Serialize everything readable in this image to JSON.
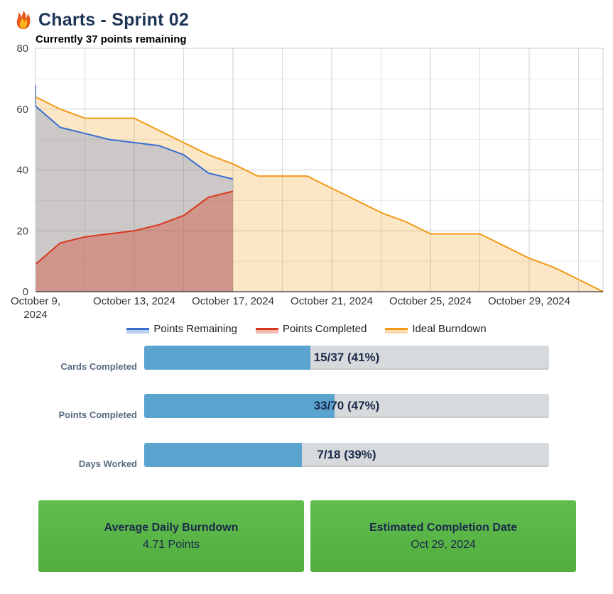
{
  "header": {
    "title": "Charts - Sprint 02",
    "subtitle": "Currently 37 points remaining",
    "logo_icon": "flame-icon"
  },
  "chart_data": {
    "type": "area",
    "x_start": "2024-10-09",
    "y_ticks": [
      "0",
      "20",
      "40",
      "60",
      "80"
    ],
    "ylim": [
      0,
      80
    ],
    "x_tick_labels": [
      [
        "October 9,",
        "2024"
      ],
      [
        "October 13, 2024"
      ],
      [
        "October 17, 2024"
      ],
      [
        "October 21, 2024"
      ],
      [
        "October 25, 2024"
      ],
      [
        "October 29, 2024"
      ]
    ],
    "series": [
      {
        "name": "Points Remaining",
        "color": "#3a6fd1",
        "points": [
          [
            "2024-10-09",
            68
          ],
          [
            "2024-10-09",
            61
          ],
          [
            "2024-10-10",
            54
          ],
          [
            "2024-10-11",
            52
          ],
          [
            "2024-10-12",
            50
          ],
          [
            "2024-10-13",
            49
          ],
          [
            "2024-10-14",
            48
          ],
          [
            "2024-10-15",
            45
          ],
          [
            "2024-10-16",
            39
          ],
          [
            "2024-10-17",
            37
          ]
        ]
      },
      {
        "name": "Points Completed",
        "color": "#d9381e",
        "points": [
          [
            "2024-10-09",
            9
          ],
          [
            "2024-10-10",
            16
          ],
          [
            "2024-10-11",
            18
          ],
          [
            "2024-10-12",
            19
          ],
          [
            "2024-10-13",
            20
          ],
          [
            "2024-10-14",
            22
          ],
          [
            "2024-10-15",
            25
          ],
          [
            "2024-10-16",
            31
          ],
          [
            "2024-10-17",
            33
          ]
        ]
      },
      {
        "name": "Ideal Burndown",
        "color": "#f19a18",
        "points": [
          [
            "2024-10-09",
            64
          ],
          [
            "2024-10-10",
            60
          ],
          [
            "2024-10-11",
            57
          ],
          [
            "2024-10-12",
            57
          ],
          [
            "2024-10-13",
            57
          ],
          [
            "2024-10-14",
            53
          ],
          [
            "2024-10-15",
            49
          ],
          [
            "2024-10-16",
            45
          ],
          [
            "2024-10-17",
            42
          ],
          [
            "2024-10-18",
            38
          ],
          [
            "2024-10-19",
            38
          ],
          [
            "2024-10-20",
            38
          ],
          [
            "2024-10-21",
            34
          ],
          [
            "2024-10-22",
            30
          ],
          [
            "2024-10-23",
            26
          ],
          [
            "2024-10-24",
            23
          ],
          [
            "2024-10-25",
            19
          ],
          [
            "2024-10-26",
            19
          ],
          [
            "2024-10-27",
            19
          ],
          [
            "2024-10-28",
            15
          ],
          [
            "2024-10-29",
            11
          ],
          [
            "2024-10-30",
            8
          ],
          [
            "2024-10-31",
            4
          ],
          [
            "2024-11-01",
            0
          ]
        ]
      }
    ]
  },
  "legend": [
    {
      "label": "Points Remaining",
      "color": "#3a6fd1"
    },
    {
      "label": "Points Completed",
      "color": "#d9381e"
    },
    {
      "label": "Ideal Burndown",
      "color": "#f19a18"
    }
  ],
  "stats": [
    {
      "label": "Cards Completed",
      "text": "15/37 (41%)",
      "fraction": 0.41
    },
    {
      "label": "Points Completed",
      "text": "33/70 (47%)",
      "fraction": 0.47
    },
    {
      "label": "Days Worked",
      "text": "7/18 (39%)",
      "fraction": 0.39
    }
  ],
  "cards": [
    {
      "title": "Average Daily Burndown",
      "value": "4.71 Points"
    },
    {
      "title": "Estimated Completion Date",
      "value": "Oct 29, 2024"
    }
  ]
}
